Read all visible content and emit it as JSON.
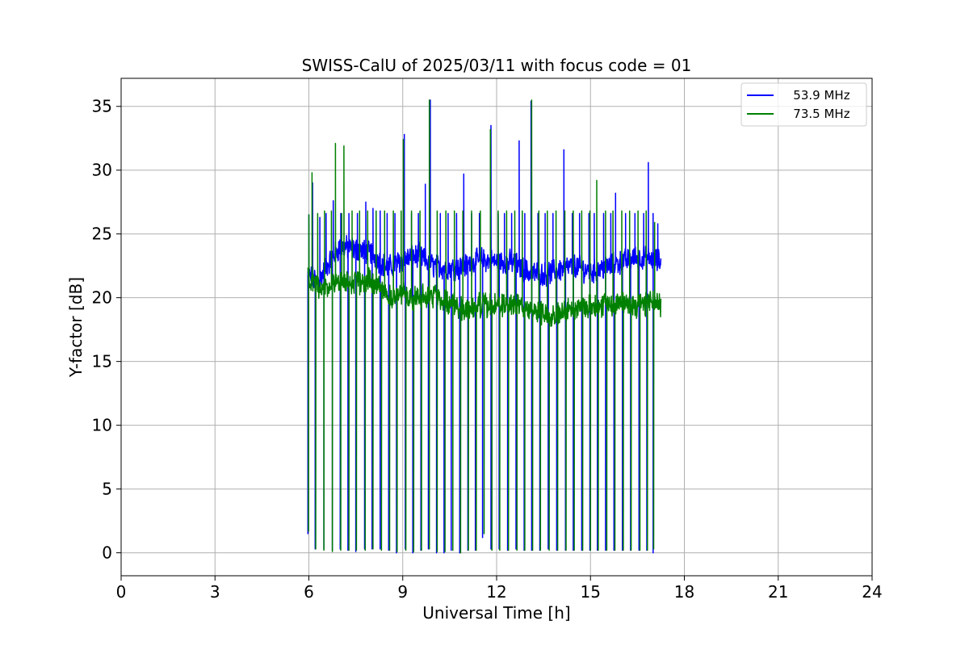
{
  "chart_data": {
    "type": "line",
    "title": "SWISS-CalU of 2025/03/11 with focus code = 01",
    "xlabel": "Universal Time [h]",
    "ylabel": "Y-factor [dB]",
    "xlim": [
      0,
      24
    ],
    "ylim": [
      -1.8,
      37.2
    ],
    "xticks": [
      0,
      3,
      6,
      9,
      12,
      15,
      18,
      21,
      24
    ],
    "yticks": [
      0,
      5,
      10,
      15,
      20,
      25,
      30,
      35
    ],
    "grid": true,
    "legend_position": "top-right",
    "series": [
      {
        "name": "   53.9 MHz",
        "color": "#0000ff",
        "t_start": 5.97,
        "t_end": 17.25,
        "baseline": [
          [
            5.97,
            21.8
          ],
          [
            6.3,
            21.2
          ],
          [
            6.6,
            22.6
          ],
          [
            7.0,
            24.0
          ],
          [
            7.5,
            23.8
          ],
          [
            8.0,
            23.5
          ],
          [
            8.5,
            22.3
          ],
          [
            9.0,
            23.0
          ],
          [
            9.5,
            23.3
          ],
          [
            10.0,
            22.5
          ],
          [
            10.5,
            22.3
          ],
          [
            11.0,
            22.5
          ],
          [
            11.5,
            23.0
          ],
          [
            12.0,
            22.8
          ],
          [
            12.5,
            22.8
          ],
          [
            13.0,
            22.0
          ],
          [
            13.5,
            21.8
          ],
          [
            14.0,
            22.2
          ],
          [
            14.5,
            22.5
          ],
          [
            15.0,
            22.0
          ],
          [
            15.5,
            22.4
          ],
          [
            16.0,
            22.8
          ],
          [
            16.5,
            23.2
          ],
          [
            17.0,
            23.0
          ],
          [
            17.25,
            22.8
          ]
        ],
        "spikes": [
          [
            6.0,
            26.5
          ],
          [
            6.12,
            29.0
          ],
          [
            6.35,
            26.3
          ],
          [
            6.55,
            26.6
          ],
          [
            6.78,
            27.6
          ],
          [
            7.02,
            26.6
          ],
          [
            7.28,
            26.6
          ],
          [
            7.55,
            26.6
          ],
          [
            7.82,
            27.5
          ],
          [
            8.05,
            27.0
          ],
          [
            8.28,
            26.8
          ],
          [
            8.5,
            26.6
          ],
          [
            8.75,
            26.6
          ],
          [
            9.05,
            32.8
          ],
          [
            9.28,
            26.6
          ],
          [
            9.5,
            26.6
          ],
          [
            9.72,
            28.9
          ],
          [
            9.88,
            35.5
          ],
          [
            10.2,
            26.6
          ],
          [
            10.45,
            26.6
          ],
          [
            10.72,
            26.6
          ],
          [
            10.95,
            29.7
          ],
          [
            11.2,
            26.6
          ],
          [
            11.45,
            26.6
          ],
          [
            11.82,
            33.5
          ],
          [
            12.05,
            26.6
          ],
          [
            12.25,
            26.6
          ],
          [
            12.48,
            26.6
          ],
          [
            12.72,
            32.3
          ],
          [
            12.9,
            26.6
          ],
          [
            13.1,
            35.4
          ],
          [
            13.32,
            26.6
          ],
          [
            13.55,
            26.6
          ],
          [
            13.8,
            26.6
          ],
          [
            14.15,
            31.6
          ],
          [
            14.42,
            26.6
          ],
          [
            14.65,
            26.6
          ],
          [
            14.95,
            26.6
          ],
          [
            15.12,
            26.6
          ],
          [
            15.42,
            26.6
          ],
          [
            15.65,
            26.6
          ],
          [
            15.8,
            28.2
          ],
          [
            16.12,
            26.6
          ],
          [
            16.42,
            26.6
          ],
          [
            16.7,
            26.6
          ],
          [
            16.85,
            30.6
          ],
          [
            17.0,
            26.6
          ],
          [
            17.15,
            25.8
          ]
        ],
        "drops": [
          [
            5.97,
            1.5
          ],
          [
            6.2,
            0.3
          ],
          [
            6.48,
            0.3
          ],
          [
            6.75,
            0.2
          ],
          [
            7.0,
            0.3
          ],
          [
            7.25,
            0.2
          ],
          [
            7.5,
            0.1
          ],
          [
            7.78,
            0.3
          ],
          [
            8.02,
            0.3
          ],
          [
            8.28,
            0.3
          ],
          [
            8.55,
            0.2
          ],
          [
            8.8,
            0.0
          ],
          [
            9.08,
            0.3
          ],
          [
            9.32,
            0.0
          ],
          [
            9.58,
            0.2
          ],
          [
            9.82,
            0.3
          ],
          [
            10.08,
            0.0
          ],
          [
            10.32,
            0.0
          ],
          [
            10.55,
            0.2
          ],
          [
            10.82,
            0.0
          ],
          [
            11.08,
            0.2
          ],
          [
            11.32,
            0.2
          ],
          [
            11.55,
            1.2
          ],
          [
            11.82,
            0.3
          ],
          [
            12.08,
            0.3
          ],
          [
            12.35,
            0.2
          ],
          [
            12.62,
            0.3
          ],
          [
            12.88,
            0.2
          ],
          [
            13.12,
            0.2
          ],
          [
            13.38,
            0.2
          ],
          [
            13.65,
            0.3
          ],
          [
            13.92,
            0.2
          ],
          [
            14.2,
            0.2
          ],
          [
            14.45,
            0.2
          ],
          [
            14.72,
            0.2
          ],
          [
            14.98,
            0.2
          ],
          [
            15.22,
            0.2
          ],
          [
            15.48,
            0.2
          ],
          [
            15.75,
            0.2
          ],
          [
            16.02,
            0.2
          ],
          [
            16.28,
            0.2
          ],
          [
            16.55,
            0.2
          ],
          [
            16.8,
            0.2
          ],
          [
            17.0,
            0.0
          ]
        ]
      },
      {
        "name": "   73.5 MHz",
        "color": "#008000",
        "t_start": 5.97,
        "t_end": 17.25,
        "baseline": [
          [
            5.97,
            21.5
          ],
          [
            6.5,
            20.7
          ],
          [
            7.0,
            21.3
          ],
          [
            7.5,
            21.2
          ],
          [
            8.0,
            21.3
          ],
          [
            8.3,
            21.0
          ],
          [
            8.6,
            20.0
          ],
          [
            9.0,
            20.3
          ],
          [
            9.5,
            20.0
          ],
          [
            10.0,
            20.2
          ],
          [
            10.5,
            19.6
          ],
          [
            11.0,
            19.1
          ],
          [
            11.5,
            19.4
          ],
          [
            12.0,
            19.3
          ],
          [
            12.5,
            19.5
          ],
          [
            13.0,
            19.1
          ],
          [
            13.5,
            18.8
          ],
          [
            14.0,
            18.8
          ],
          [
            14.5,
            19.2
          ],
          [
            15.0,
            19.4
          ],
          [
            15.5,
            19.5
          ],
          [
            16.0,
            19.6
          ],
          [
            16.5,
            19.3
          ],
          [
            17.0,
            19.8
          ],
          [
            17.25,
            19.5
          ]
        ],
        "spikes": [
          [
            6.0,
            26.5
          ],
          [
            6.1,
            29.8
          ],
          [
            6.28,
            26.6
          ],
          [
            6.5,
            26.8
          ],
          [
            6.72,
            26.8
          ],
          [
            6.85,
            32.1
          ],
          [
            7.05,
            26.6
          ],
          [
            7.12,
            31.9
          ],
          [
            7.38,
            26.8
          ],
          [
            7.62,
            26.8
          ],
          [
            7.88,
            26.8
          ],
          [
            8.15,
            26.8
          ],
          [
            8.42,
            26.8
          ],
          [
            8.7,
            26.8
          ],
          [
            8.95,
            26.8
          ],
          [
            9.02,
            32.4
          ],
          [
            9.28,
            26.8
          ],
          [
            9.55,
            26.8
          ],
          [
            9.85,
            35.5
          ],
          [
            10.1,
            26.8
          ],
          [
            10.38,
            26.8
          ],
          [
            10.65,
            26.8
          ],
          [
            10.92,
            26.8
          ],
          [
            11.2,
            26.8
          ],
          [
            11.48,
            26.8
          ],
          [
            11.8,
            33.2
          ],
          [
            12.05,
            26.8
          ],
          [
            12.32,
            26.8
          ],
          [
            12.58,
            26.8
          ],
          [
            12.82,
            26.8
          ],
          [
            13.12,
            35.5
          ],
          [
            13.35,
            26.8
          ],
          [
            13.62,
            26.8
          ],
          [
            13.9,
            26.8
          ],
          [
            14.18,
            26.8
          ],
          [
            14.45,
            26.8
          ],
          [
            14.72,
            26.8
          ],
          [
            14.98,
            26.8
          ],
          [
            15.2,
            29.2
          ],
          [
            15.48,
            26.8
          ],
          [
            15.72,
            26.8
          ],
          [
            16.0,
            26.8
          ],
          [
            16.25,
            26.8
          ],
          [
            16.52,
            26.8
          ],
          [
            16.78,
            26.8
          ],
          [
            17.05,
            25.9
          ]
        ],
        "drops": [
          [
            5.99,
            1.7
          ],
          [
            6.22,
            0.3
          ],
          [
            6.48,
            0.2
          ],
          [
            6.75,
            0.1
          ],
          [
            7.02,
            0.2
          ],
          [
            7.28,
            0.2
          ],
          [
            7.52,
            0.2
          ],
          [
            7.8,
            0.2
          ],
          [
            8.05,
            0.3
          ],
          [
            8.32,
            0.2
          ],
          [
            8.58,
            0.2
          ],
          [
            8.82,
            0.1
          ],
          [
            9.1,
            0.2
          ],
          [
            9.35,
            0.1
          ],
          [
            9.6,
            0.2
          ],
          [
            9.85,
            0.3
          ],
          [
            10.1,
            0.1
          ],
          [
            10.35,
            0.1
          ],
          [
            10.6,
            0.2
          ],
          [
            10.85,
            0.0
          ],
          [
            11.1,
            0.2
          ],
          [
            11.35,
            0.2
          ],
          [
            11.6,
            1.5
          ],
          [
            11.85,
            0.2
          ],
          [
            12.1,
            0.2
          ],
          [
            12.38,
            0.2
          ],
          [
            12.65,
            0.2
          ],
          [
            12.9,
            0.2
          ],
          [
            13.15,
            0.2
          ],
          [
            13.4,
            0.2
          ],
          [
            13.68,
            0.2
          ],
          [
            13.95,
            0.2
          ],
          [
            14.22,
            0.2
          ],
          [
            14.48,
            0.2
          ],
          [
            14.75,
            0.2
          ],
          [
            15.0,
            0.2
          ],
          [
            15.25,
            0.2
          ],
          [
            15.52,
            0.2
          ],
          [
            15.78,
            0.2
          ],
          [
            16.05,
            0.2
          ],
          [
            16.3,
            0.2
          ],
          [
            16.58,
            0.2
          ],
          [
            16.82,
            0.2
          ],
          [
            17.02,
            0.3
          ]
        ]
      }
    ]
  }
}
